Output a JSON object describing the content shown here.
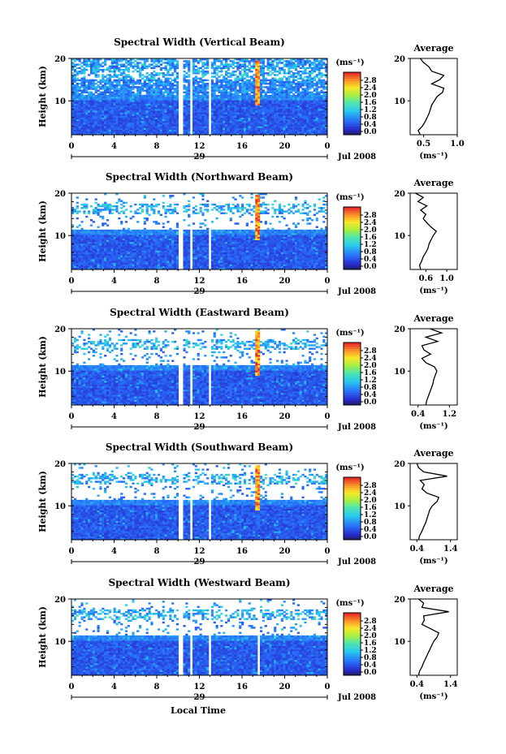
{
  "figure": {
    "xlabel": "Local Time",
    "ylabel": "Height (km)",
    "xticks": [
      "0",
      "4",
      "8",
      "12",
      "16",
      "20",
      "0"
    ],
    "yticks": [
      "10",
      "20"
    ],
    "date_day": "29",
    "date_month_year": "Jul 2008",
    "colorbar_unit": "(ms⁻¹)",
    "colorbar_ticks": [
      "0.0",
      "0.4",
      "0.8",
      "1.2",
      "1.6",
      "2.0",
      "2.4",
      "2.8"
    ],
    "average_title": "Average",
    "average_unit": "(ms⁻¹)"
  },
  "chart_data": [
    {
      "type": "heatmap",
      "title": "Spectral Width (Vertical Beam)",
      "xlim": [
        0,
        24
      ],
      "ylim": [
        2,
        20
      ],
      "clim": [
        0,
        3.0
      ],
      "profile": {
        "xlim": [
          0.3,
          1.0
        ],
        "xticks": [
          "0.5",
          "1.0"
        ],
        "heights": [
          2,
          3,
          4,
          5,
          6,
          7,
          8,
          9,
          10,
          11,
          12,
          13,
          14,
          15,
          16,
          17,
          18,
          19,
          20
        ],
        "values": [
          0.45,
          0.42,
          0.48,
          0.52,
          0.55,
          0.58,
          0.6,
          0.62,
          0.66,
          0.7,
          0.78,
          0.8,
          0.62,
          0.74,
          0.8,
          0.62,
          0.58,
          0.5,
          0.45
        ]
      }
    },
    {
      "type": "heatmap",
      "title": "Spectral Width (Northward Beam)",
      "xlim": [
        0,
        24
      ],
      "ylim": [
        2,
        20
      ],
      "clim": [
        0,
        3.0
      ],
      "profile": {
        "xlim": [
          0.3,
          1.2
        ],
        "xticks": [
          "0.6",
          "1.0"
        ],
        "heights": [
          2,
          3,
          4,
          5,
          6,
          7,
          8,
          9,
          10,
          11,
          12,
          13,
          14,
          15,
          16,
          17,
          18,
          19,
          20
        ],
        "values": [
          0.5,
          0.48,
          0.52,
          0.55,
          0.6,
          0.64,
          0.66,
          0.7,
          0.74,
          0.8,
          0.7,
          0.62,
          0.55,
          0.6,
          0.5,
          0.62,
          0.45,
          0.55,
          0.4
        ]
      }
    },
    {
      "type": "heatmap",
      "title": "Spectral Width (Eastward Beam)",
      "xlim": [
        0,
        24
      ],
      "ylim": [
        2,
        20
      ],
      "clim": [
        0,
        3.0
      ],
      "profile": {
        "xlim": [
          0.2,
          1.4
        ],
        "xticks": [
          "0.4",
          "1.2"
        ],
        "heights": [
          2,
          3,
          4,
          5,
          6,
          7,
          8,
          9,
          10,
          11,
          12,
          13,
          14,
          15,
          16,
          17,
          18,
          19,
          20
        ],
        "values": [
          0.6,
          0.62,
          0.66,
          0.7,
          0.74,
          0.78,
          0.8,
          0.84,
          0.88,
          0.82,
          0.6,
          0.5,
          0.72,
          0.55,
          0.5,
          0.9,
          0.6,
          1.0,
          0.7
        ]
      }
    },
    {
      "type": "heatmap",
      "title": "Spectral Width (Southward Beam)",
      "xlim": [
        0,
        24
      ],
      "ylim": [
        2,
        20
      ],
      "clim": [
        0,
        3.0
      ],
      "profile": {
        "xlim": [
          0.2,
          1.6
        ],
        "xticks": [
          "0.4",
          "1.4"
        ],
        "heights": [
          2,
          3,
          4,
          5,
          6,
          7,
          8,
          9,
          10,
          11,
          12,
          13,
          14,
          15,
          16,
          17,
          18,
          19,
          20
        ],
        "values": [
          0.45,
          0.48,
          0.55,
          0.6,
          0.66,
          0.7,
          0.74,
          0.78,
          0.86,
          1.0,
          1.05,
          0.7,
          0.55,
          0.62,
          0.5,
          1.3,
          0.6,
          0.45,
          0.4
        ]
      }
    },
    {
      "type": "heatmap",
      "title": "Spectral Width (Westward Beam)",
      "xlim": [
        0,
        24
      ],
      "ylim": [
        2,
        20
      ],
      "clim": [
        0,
        3.0
      ],
      "profile": {
        "xlim": [
          0.2,
          1.6
        ],
        "xticks": [
          "0.4",
          "1.4"
        ],
        "heights": [
          2,
          3,
          4,
          5,
          6,
          7,
          8,
          9,
          10,
          11,
          12,
          13,
          14,
          15,
          16,
          17,
          18,
          19,
          20
        ],
        "values": [
          0.45,
          0.48,
          0.55,
          0.6,
          0.66,
          0.72,
          0.78,
          0.84,
          0.9,
          1.0,
          1.05,
          0.8,
          0.55,
          0.62,
          0.6,
          1.35,
          0.55,
          0.6,
          0.45
        ]
      }
    }
  ]
}
